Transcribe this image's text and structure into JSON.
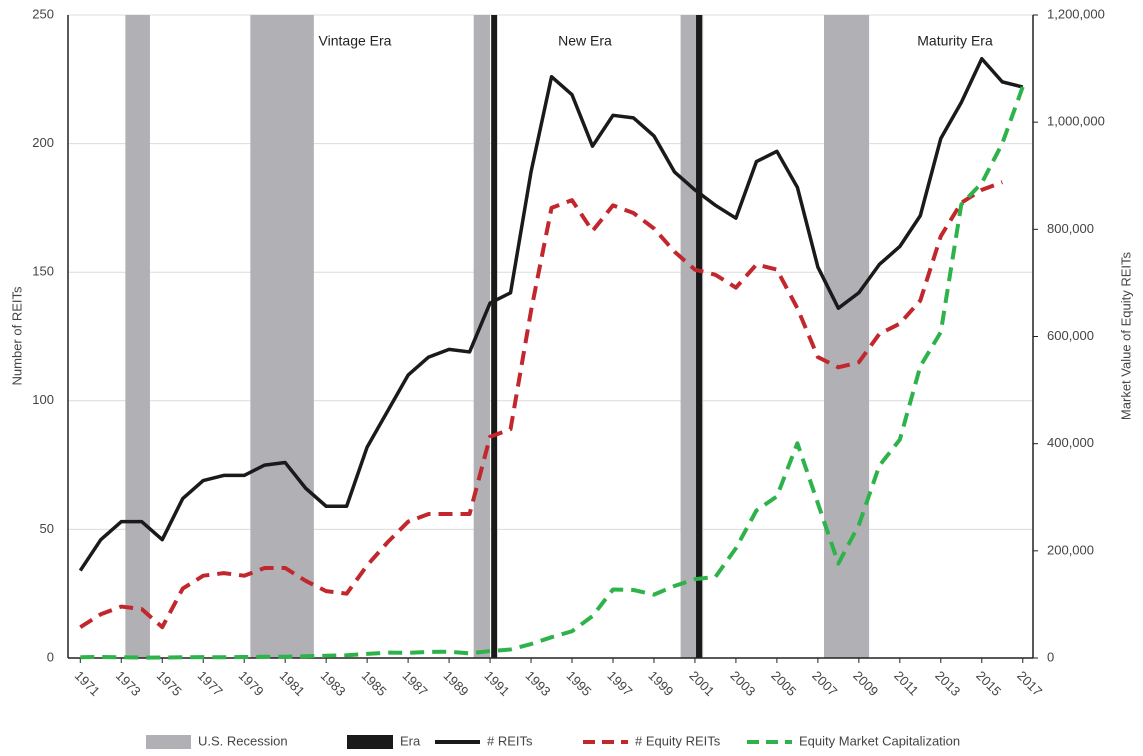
{
  "chart_data": {
    "type": "line",
    "ylabel": "Number of REITs",
    "y2label": "Market Value of Equity REITs",
    "x": [
      1971,
      1972,
      1973,
      1974,
      1975,
      1976,
      1977,
      1978,
      1979,
      1980,
      1981,
      1982,
      1983,
      1984,
      1985,
      1986,
      1987,
      1988,
      1989,
      1990,
      1991,
      1992,
      1993,
      1994,
      1995,
      1996,
      1997,
      1998,
      1999,
      2000,
      2001,
      2002,
      2003,
      2004,
      2005,
      2006,
      2007,
      2008,
      2009,
      2010,
      2011,
      2012,
      2013,
      2014,
      2015,
      2016,
      2017
    ],
    "xlim": [
      1970.4,
      2017.5
    ],
    "xticks": [
      1971,
      1973,
      1975,
      1977,
      1979,
      1981,
      1983,
      1985,
      1987,
      1989,
      1991,
      1993,
      1995,
      1997,
      1999,
      2001,
      2003,
      2005,
      2007,
      2009,
      2011,
      2013,
      2015,
      2017
    ],
    "ylim": [
      0,
      250
    ],
    "yticks": [
      0,
      50,
      100,
      150,
      200,
      250
    ],
    "y2lim": [
      0,
      1200000
    ],
    "y2ticks": [
      0,
      {
        "value": 200000,
        "label": "200,000"
      },
      {
        "value": 400000,
        "label": "400,000"
      },
      {
        "value": 600000,
        "label": "600,000"
      },
      {
        "value": 800000,
        "label": "800,000"
      },
      {
        "value": 1000000,
        "label": "1,000,000"
      },
      {
        "value": 1200000,
        "label": "1,200,000"
      }
    ],
    "grid": true,
    "recessions": {
      "name": "U.S. Recession",
      "color": "#b1b1b5",
      "spans": [
        [
          1973.2,
          1974.4
        ],
        [
          1979.3,
          1982.4
        ],
        [
          1990.2,
          1991.0
        ],
        [
          2000.3,
          2001.4
        ],
        [
          2007.3,
          2009.5
        ]
      ]
    },
    "eras": {
      "name": "Era",
      "color": "#1a1a1a",
      "x": [
        1991.2,
        2001.2
      ]
    },
    "annotations": [
      "Vintage Era",
      "New Era",
      "Maturity Era"
    ],
    "series": [
      {
        "name": "# REITs",
        "color": "#1a1a1a",
        "style": "solid",
        "values": [
          34,
          46,
          53,
          53,
          46,
          62,
          69,
          71,
          71,
          75,
          76,
          66,
          59,
          59,
          82,
          96,
          110,
          117,
          120,
          119,
          138,
          142,
          189,
          226,
          219,
          199,
          211,
          210,
          203,
          189,
          182,
          176,
          171,
          193,
          197,
          183,
          152,
          136,
          142,
          153,
          160,
          172,
          202,
          216,
          233,
          224,
          222
        ]
      },
      {
        "name": "# Equity REITs",
        "color": "#c1272d",
        "style": "dashed",
        "values": [
          12,
          17,
          20,
          19,
          12,
          27,
          32,
          33,
          32,
          35,
          35,
          30,
          26,
          25,
          36,
          45,
          53,
          56,
          56,
          56,
          86,
          89,
          135,
          175,
          178,
          166,
          176,
          173,
          167,
          158,
          151,
          149,
          144,
          153,
          151,
          136,
          117,
          113,
          115,
          126,
          130,
          139,
          164,
          177,
          182,
          185,
          null
        ]
      },
      {
        "name": "Equity Market Capitalization",
        "color": "#2db34a",
        "style": "dashed",
        "axis": "y2",
        "values": [
          1494,
          1881,
          1394,
          712,
          900,
          1308,
          1528,
          1412,
          1754,
          2299,
          2439,
          3299,
          4257,
          5085,
          7674,
          9923,
          9702,
          11435,
          11662,
          8737,
          12968,
          15912,
          26082,
          38812,
          49913,
          78302,
          127825,
          126905,
          118233,
          134431,
          147092,
          151272,
          204800,
          275291,
          301491,
          400741,
          288695,
          176238,
          248356,
          358908,
          407529,
          544415,
          608277,
          846410,
          886488,
          960193,
          1065948
        ]
      }
    ]
  }
}
